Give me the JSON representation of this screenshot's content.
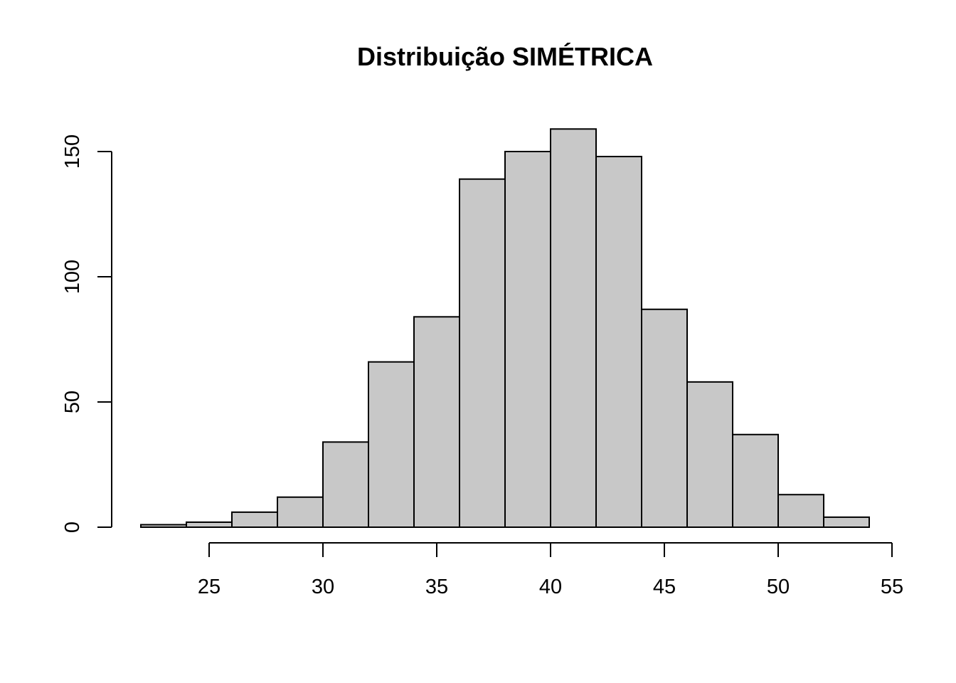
{
  "chart_data": {
    "type": "bar",
    "title": "Distribuição SIMÉTRICA",
    "xlabel": "",
    "ylabel": "",
    "bin_edges": [
      22,
      24,
      26,
      28,
      30,
      32,
      34,
      36,
      38,
      40,
      42,
      44,
      46,
      48,
      50,
      52,
      54
    ],
    "values": [
      1,
      2,
      6,
      12,
      34,
      66,
      84,
      139,
      150,
      159,
      148,
      87,
      58,
      37,
      13,
      4
    ],
    "xlim": [
      22,
      55
    ],
    "ylim": [
      0,
      160
    ],
    "x_ticks": [
      25,
      30,
      35,
      40,
      45,
      50,
      55
    ],
    "x_tick_labels": [
      "25",
      "30",
      "35",
      "40",
      "45",
      "50",
      "55"
    ],
    "y_ticks": [
      0,
      50,
      100,
      150
    ],
    "y_tick_labels": [
      "0",
      "50",
      "100",
      "150"
    ],
    "grid": false,
    "legend": "none",
    "colors": {
      "bar_fill": "#c8c8c8",
      "bar_stroke": "#000000",
      "background": "#ffffff"
    }
  }
}
